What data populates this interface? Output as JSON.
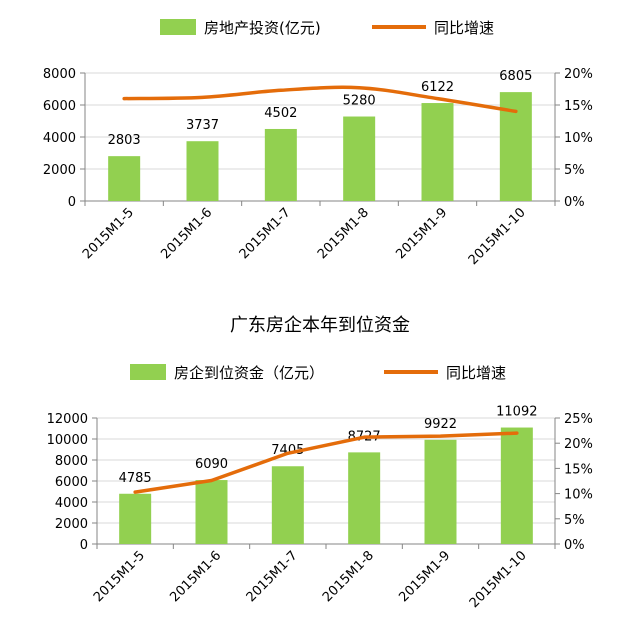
{
  "colors": {
    "bar": "#92d050",
    "line": "#e46c0a",
    "axis": "#868686",
    "grid": "#d9d9d9",
    "text": "#000000"
  },
  "chart_data": [
    {
      "type": "bar",
      "title": "",
      "categories": [
        "2015M1-5",
        "2015M1-6",
        "2015M1-7",
        "2015M1-8",
        "2015M1-9",
        "2015M1-10"
      ],
      "series": [
        {
          "name": "房地产投资(亿元)",
          "type": "bar",
          "axis": "left",
          "values": [
            2803,
            3737,
            4502,
            5280,
            6122,
            6805
          ]
        },
        {
          "name": "同比增速",
          "type": "line",
          "axis": "right",
          "values": [
            16.0,
            16.2,
            17.3,
            17.7,
            16.0,
            14.0
          ]
        }
      ],
      "ylim": [
        0,
        8000
      ],
      "yticks": [
        "0",
        "2000",
        "4000",
        "6000",
        "8000"
      ],
      "y2lim": [
        0,
        20
      ],
      "y2ticks": [
        "0%",
        "5%",
        "10%",
        "15%",
        "20%"
      ],
      "data_labels": [
        "2803",
        "3737",
        "4502",
        "5280",
        "6122",
        "6805"
      ],
      "grid": true,
      "legend_position": "top"
    },
    {
      "type": "bar",
      "title": "广东房企本年到位资金",
      "categories": [
        "2015M1-5",
        "2015M1-6",
        "2015M1-7",
        "2015M1-8",
        "2015M1-9",
        "2015M1-10"
      ],
      "series": [
        {
          "name": "房企到位资金（亿元）",
          "type": "bar",
          "axis": "left",
          "values": [
            4785,
            6090,
            7405,
            8727,
            9922,
            11092
          ]
        },
        {
          "name": "同比增速",
          "type": "line",
          "axis": "right",
          "values": [
            10.3,
            12.6,
            18.0,
            21.2,
            21.4,
            22.0
          ]
        }
      ],
      "ylim": [
        0,
        12000
      ],
      "yticks": [
        "0",
        "2000",
        "4000",
        "6000",
        "8000",
        "10000",
        "12000"
      ],
      "y2lim": [
        0,
        25
      ],
      "y2ticks": [
        "0%",
        "5%",
        "10%",
        "15%",
        "20%",
        "25%"
      ],
      "data_labels": [
        "4785",
        "6090",
        "7405",
        "8727",
        "9922",
        "11092"
      ],
      "grid": true,
      "legend_position": "top"
    }
  ]
}
